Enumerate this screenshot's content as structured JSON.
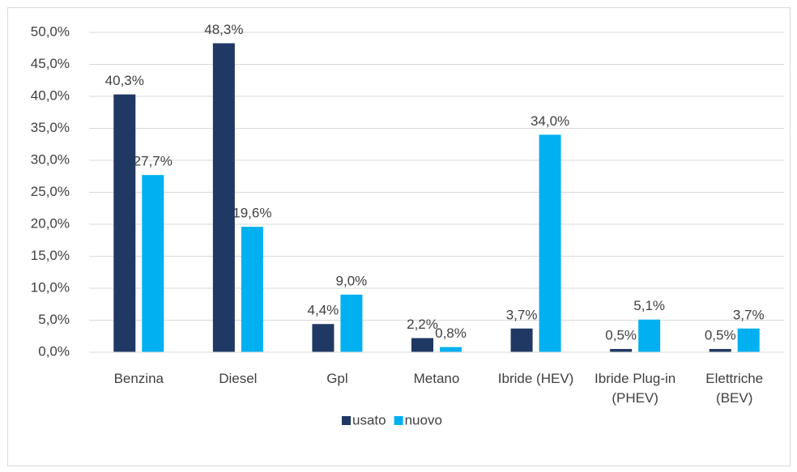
{
  "chart_data": {
    "type": "bar",
    "categories": [
      "Benzina",
      "Diesel",
      "Gpl",
      "Metano",
      "Ibride (HEV)",
      "Ibride Plug-in  (PHEV)",
      "Elettriche (BEV)"
    ],
    "series": [
      {
        "name": "usato",
        "color": "#1f3864",
        "values": [
          40.3,
          48.3,
          4.4,
          2.2,
          3.7,
          0.5,
          0.5
        ],
        "value_labels": [
          "40,3%",
          "48,3%",
          "4,4%",
          "2,2%",
          "3,7%",
          "0,5%",
          "0,5%"
        ]
      },
      {
        "name": "nuovo",
        "color": "#00b0f0",
        "values": [
          27.7,
          19.6,
          9.0,
          0.8,
          34.0,
          5.1,
          3.7
        ],
        "value_labels": [
          "27,7%",
          "19,6%",
          "9,0%",
          "0,8%",
          "34,0%",
          "5,1%",
          "3,7%"
        ]
      }
    ],
    "ylim": [
      0,
      50
    ],
    "yticks": [
      {
        "value": 0,
        "label": "0,0%"
      },
      {
        "value": 5,
        "label": "5,0%"
      },
      {
        "value": 10,
        "label": "10,0%"
      },
      {
        "value": 15,
        "label": "15,0%"
      },
      {
        "value": 20,
        "label": "20,0%"
      },
      {
        "value": 25,
        "label": "25,0%"
      },
      {
        "value": 30,
        "label": "30,0%"
      },
      {
        "value": 35,
        "label": "35,0%"
      },
      {
        "value": 40,
        "label": "40,0%"
      },
      {
        "value": 45,
        "label": "45,0%"
      },
      {
        "value": 50,
        "label": "50,0%"
      }
    ],
    "grid": true,
    "legend": "bottom"
  }
}
